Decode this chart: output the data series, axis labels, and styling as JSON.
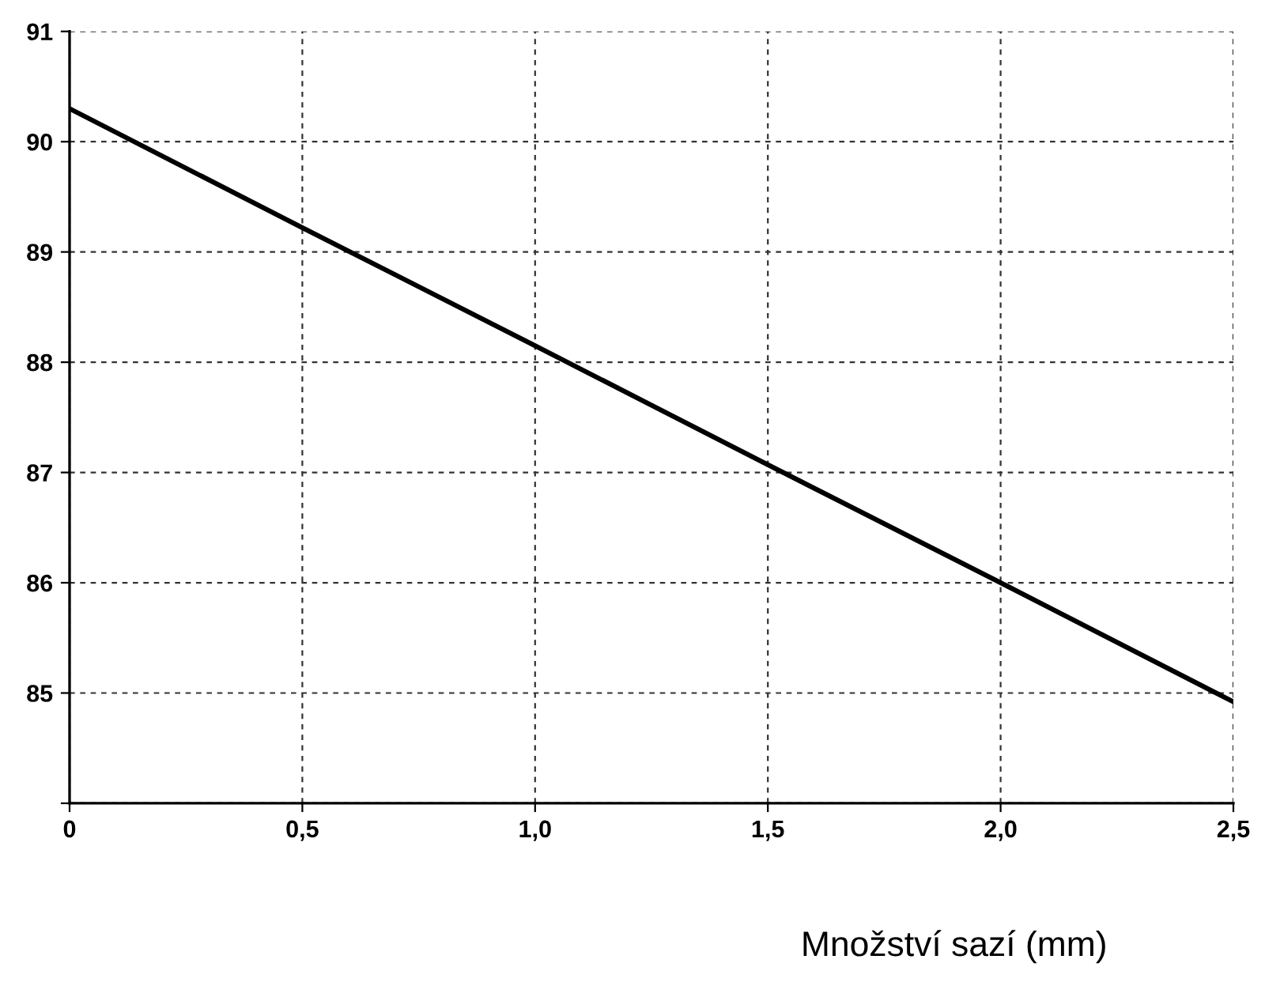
{
  "chart_data": {
    "type": "line",
    "xlabel": "Množství sazí (mm)",
    "x": [
      0,
      0.5,
      1.0,
      1.5,
      2.0,
      2.5
    ],
    "series": [
      {
        "color": "#000000",
        "values": [
          90.3,
          89.22,
          88.15,
          87.07,
          86.0,
          84.92
        ]
      }
    ],
    "xlim": [
      0,
      2.5
    ],
    "ylim": [
      84,
      91
    ],
    "xticks": [
      0,
      {
        "value": 0.5,
        "label": "0,5"
      },
      {
        "value": 1.0,
        "label": "1,0"
      },
      {
        "value": 1.5,
        "label": "1,5"
      },
      {
        "value": 2.0,
        "label": "2,0"
      },
      {
        "value": 2.5,
        "label": "2,5"
      }
    ],
    "yticks": [
      {
        "value": 84,
        "label": null
      },
      85,
      86,
      87,
      88,
      89,
      90,
      91
    ],
    "grid": true,
    "line_style": "solid",
    "marker": "none"
  }
}
